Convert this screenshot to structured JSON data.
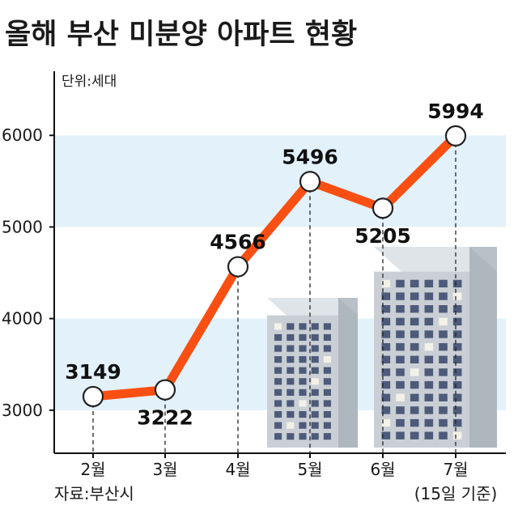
{
  "chart_data": {
    "type": "line",
    "title": "올해 부산 미분양 아파트 현황",
    "unit_note": "단위:세대",
    "source_note": "자료:부산시",
    "last_point_note": "(15일 기준)",
    "categories": [
      "2월",
      "3월",
      "4월",
      "5월",
      "6월",
      "7월"
    ],
    "values": [
      3149,
      3222,
      4566,
      5496,
      5205,
      5994
    ],
    "y_ticks": [
      "3000",
      "4000",
      "5000",
      "6000"
    ],
    "ylim": [
      2530,
      6700
    ],
    "grid": false,
    "banded_background": true,
    "colors": {
      "line": "#fa4f12",
      "band": "#e3f1fb",
      "marker_fill": "#ffffff",
      "marker_stroke": "#222222",
      "axis": "#111111"
    }
  }
}
